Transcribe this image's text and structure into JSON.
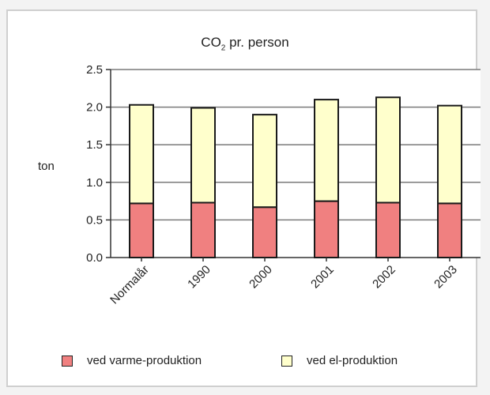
{
  "chart_data": {
    "type": "bar",
    "stacked": true,
    "title_main": "CO",
    "title_sub": "2",
    "title_rest": " pr. person",
    "ylabel": "ton",
    "xlabel": "",
    "ylim": [
      0,
      2.5
    ],
    "yticks": [
      "0.0",
      "0.5",
      "1.0",
      "1.5",
      "2.0",
      "2.5"
    ],
    "categories": [
      "Normalår",
      "1990",
      "2000",
      "2001",
      "2002",
      "2003"
    ],
    "series": [
      {
        "name": "ved varme-produktion",
        "color": "#f08080",
        "values": [
          0.72,
          0.73,
          0.67,
          0.75,
          0.73,
          0.72
        ]
      },
      {
        "name": "ved el-produktion",
        "color": "#ffffcc",
        "values": [
          1.31,
          1.26,
          1.23,
          1.35,
          1.4,
          1.3
        ]
      }
    ],
    "grid": true,
    "legend_position": "bottom"
  }
}
